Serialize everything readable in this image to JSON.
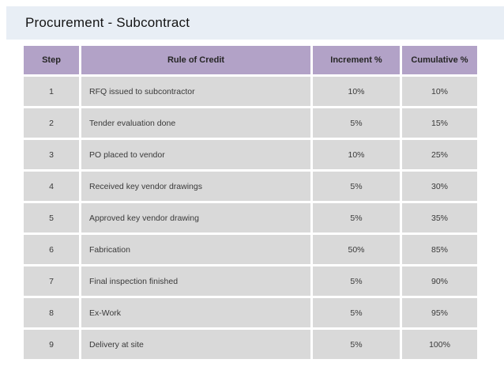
{
  "slide": {
    "title": "Procurement - Subcontract"
  },
  "table": {
    "headers": [
      "Step",
      "Rule of Credit",
      "Increment %",
      "Cumulative %"
    ],
    "rows": [
      {
        "step": "1",
        "rule": "RFQ issued to subcontractor",
        "increment": "10%",
        "cumulative": "10%"
      },
      {
        "step": "2",
        "rule": "Tender evaluation done",
        "increment": "5%",
        "cumulative": "15%"
      },
      {
        "step": "3",
        "rule": "PO placed to vendor",
        "increment": "10%",
        "cumulative": "25%"
      },
      {
        "step": "4",
        "rule": "Received key vendor drawings",
        "increment": "5%",
        "cumulative": "30%"
      },
      {
        "step": "5",
        "rule": "Approved key vendor drawing",
        "increment": "5%",
        "cumulative": "35%"
      },
      {
        "step": "6",
        "rule": "Fabrication",
        "increment": "50%",
        "cumulative": "85%"
      },
      {
        "step": "7",
        "rule": "Final inspection finished",
        "increment": "5%",
        "cumulative": "90%"
      },
      {
        "step": "8",
        "rule": "Ex-Work",
        "increment": "5%",
        "cumulative": "95%"
      },
      {
        "step": "9",
        "rule": "Delivery at site",
        "increment": "5%",
        "cumulative": "100%"
      }
    ]
  },
  "colors": {
    "banner_bg": "#e8eef5",
    "header_bg": "#b2a2c7",
    "row_bg": "#d9d9d9",
    "page_bg": "#ffffff",
    "title_text": "#141414",
    "cell_text": "#3a3a3a"
  }
}
